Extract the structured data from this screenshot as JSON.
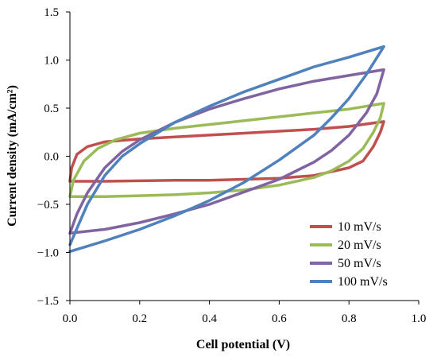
{
  "chart_data": {
    "type": "line",
    "title": "",
    "xlabel": "Cell potential (V)",
    "ylabel": "Current density (mA/cm²)",
    "xlim": [
      0.0,
      1.0
    ],
    "ylim": [
      -1.5,
      1.5
    ],
    "x_ticks": [
      "0.0",
      "0.2",
      "0.4",
      "0.6",
      "0.8",
      "1.0"
    ],
    "y_ticks": [
      "1.5",
      "1.0",
      "0.5",
      "0.0",
      "−0.5",
      "−1.0",
      "−1.5"
    ],
    "grid": false,
    "legend_position": "bottom-right",
    "series": [
      {
        "name": "10 mV/s",
        "color": "#C0504D",
        "upper": [
          [
            0.0,
            -0.26
          ],
          [
            0.005,
            -0.12
          ],
          [
            0.02,
            0.02
          ],
          [
            0.05,
            0.1
          ],
          [
            0.1,
            0.15
          ],
          [
            0.2,
            0.18
          ],
          [
            0.3,
            0.2
          ],
          [
            0.4,
            0.22
          ],
          [
            0.5,
            0.24
          ],
          [
            0.6,
            0.26
          ],
          [
            0.7,
            0.28
          ],
          [
            0.8,
            0.31
          ],
          [
            0.9,
            0.36
          ]
        ],
        "lower": [
          [
            0.9,
            0.36
          ],
          [
            0.89,
            0.25
          ],
          [
            0.87,
            0.1
          ],
          [
            0.84,
            -0.05
          ],
          [
            0.8,
            -0.12
          ],
          [
            0.7,
            -0.2
          ],
          [
            0.6,
            -0.23
          ],
          [
            0.5,
            -0.24
          ],
          [
            0.4,
            -0.25
          ],
          [
            0.3,
            -0.25
          ],
          [
            0.2,
            -0.255
          ],
          [
            0.1,
            -0.26
          ],
          [
            0.0,
            -0.26
          ]
        ]
      },
      {
        "name": "20 mV/s",
        "color": "#9BBB59",
        "upper": [
          [
            0.0,
            -0.42
          ],
          [
            0.01,
            -0.25
          ],
          [
            0.04,
            -0.05
          ],
          [
            0.08,
            0.08
          ],
          [
            0.13,
            0.17
          ],
          [
            0.2,
            0.24
          ],
          [
            0.3,
            0.29
          ],
          [
            0.4,
            0.33
          ],
          [
            0.5,
            0.37
          ],
          [
            0.6,
            0.41
          ],
          [
            0.7,
            0.45
          ],
          [
            0.8,
            0.49
          ],
          [
            0.9,
            0.55
          ]
        ],
        "lower": [
          [
            0.9,
            0.55
          ],
          [
            0.89,
            0.4
          ],
          [
            0.87,
            0.25
          ],
          [
            0.84,
            0.08
          ],
          [
            0.8,
            -0.05
          ],
          [
            0.75,
            -0.15
          ],
          [
            0.7,
            -0.22
          ],
          [
            0.6,
            -0.3
          ],
          [
            0.5,
            -0.35
          ],
          [
            0.4,
            -0.38
          ],
          [
            0.3,
            -0.4
          ],
          [
            0.2,
            -0.41
          ],
          [
            0.1,
            -0.42
          ],
          [
            0.0,
            -0.42
          ]
        ]
      },
      {
        "name": "50 mV/s",
        "color": "#8064A2",
        "upper": [
          [
            0.0,
            -0.8
          ],
          [
            0.02,
            -0.6
          ],
          [
            0.05,
            -0.38
          ],
          [
            0.1,
            -0.12
          ],
          [
            0.15,
            0.05
          ],
          [
            0.2,
            0.17
          ],
          [
            0.3,
            0.35
          ],
          [
            0.4,
            0.49
          ],
          [
            0.5,
            0.6
          ],
          [
            0.6,
            0.7
          ],
          [
            0.7,
            0.78
          ],
          [
            0.8,
            0.84
          ],
          [
            0.9,
            0.9
          ]
        ],
        "lower": [
          [
            0.9,
            0.9
          ],
          [
            0.88,
            0.65
          ],
          [
            0.85,
            0.45
          ],
          [
            0.8,
            0.22
          ],
          [
            0.75,
            0.06
          ],
          [
            0.7,
            -0.06
          ],
          [
            0.6,
            -0.24
          ],
          [
            0.5,
            -0.37
          ],
          [
            0.4,
            -0.5
          ],
          [
            0.3,
            -0.6
          ],
          [
            0.2,
            -0.69
          ],
          [
            0.1,
            -0.76
          ],
          [
            0.0,
            -0.8
          ]
        ]
      },
      {
        "name": "100 mV/s",
        "color": "#4F81BD",
        "upper": [
          [
            0.0,
            -0.92
          ],
          [
            0.02,
            -0.75
          ],
          [
            0.05,
            -0.5
          ],
          [
            0.1,
            -0.2
          ],
          [
            0.15,
            0.0
          ],
          [
            0.2,
            0.13
          ],
          [
            0.3,
            0.35
          ],
          [
            0.4,
            0.52
          ],
          [
            0.5,
            0.67
          ],
          [
            0.6,
            0.8
          ],
          [
            0.7,
            0.93
          ],
          [
            0.8,
            1.03
          ],
          [
            0.9,
            1.14
          ]
        ],
        "lower": [
          [
            0.9,
            1.14
          ],
          [
            0.85,
            0.85
          ],
          [
            0.8,
            0.6
          ],
          [
            0.75,
            0.4
          ],
          [
            0.7,
            0.22
          ],
          [
            0.6,
            -0.04
          ],
          [
            0.5,
            -0.27
          ],
          [
            0.4,
            -0.46
          ],
          [
            0.3,
            -0.62
          ],
          [
            0.2,
            -0.76
          ],
          [
            0.1,
            -0.88
          ],
          [
            0.0,
            -0.99
          ]
        ]
      }
    ]
  }
}
